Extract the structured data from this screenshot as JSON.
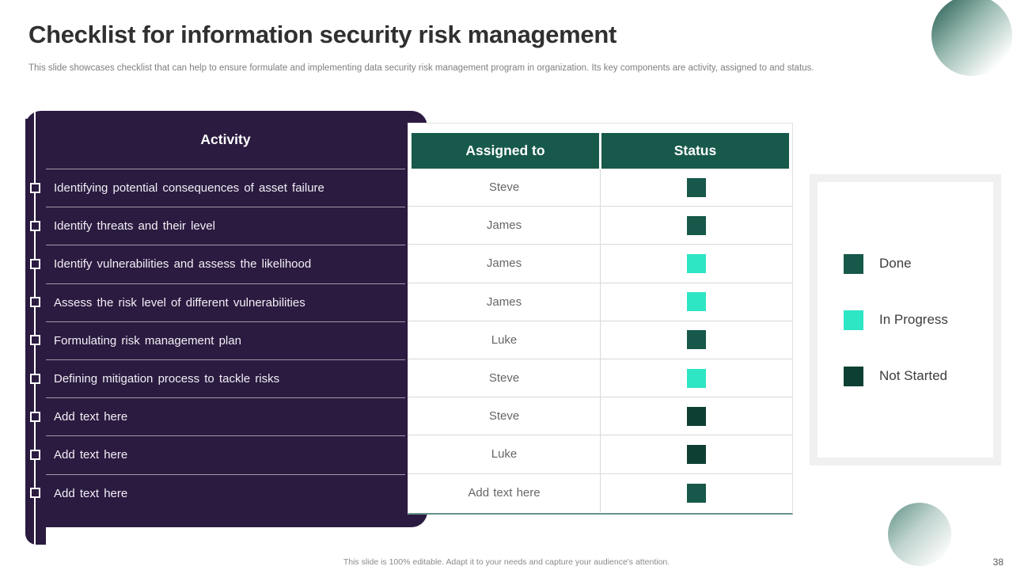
{
  "slide": {
    "title": "Checklist for information security risk management",
    "subtitle": "This slide showcases checklist that can help to ensure formulate and implementing data security risk management program in organization. Its key components are activity, assigned to and status.",
    "footer": "This slide is 100% editable. Adapt it to your needs and capture your audience's attention.",
    "page_number": "38"
  },
  "table": {
    "activity_header": "Activity",
    "assigned_header": "Assigned to",
    "status_header": "Status",
    "rows": [
      {
        "activity": "Identifying potential consequences of asset failure",
        "assigned": "Steve",
        "status": "done"
      },
      {
        "activity": "Identify threats and their level",
        "assigned": "James",
        "status": "done"
      },
      {
        "activity": "Identify vulnerabilities and assess the likelihood",
        "assigned": "James",
        "status": "in_progress"
      },
      {
        "activity": "Assess the risk level of different vulnerabilities",
        "assigned": "James",
        "status": "in_progress"
      },
      {
        "activity": "Formulating risk management plan",
        "assigned": "Luke",
        "status": "done"
      },
      {
        "activity": "Defining mitigation process to tackle risks",
        "assigned": "Steve",
        "status": "in_progress"
      },
      {
        "activity": "Add text here",
        "assigned": "Steve",
        "status": "not_started"
      },
      {
        "activity": "Add text here",
        "assigned": "Luke",
        "status": "not_started"
      },
      {
        "activity": "Add text here",
        "assigned": "Add text here",
        "status": "done"
      }
    ]
  },
  "legend": {
    "items": [
      {
        "label": "Done",
        "status": "done"
      },
      {
        "label": "In Progress",
        "status": "in_progress"
      },
      {
        "label": "Not Started",
        "status": "not_started"
      }
    ]
  },
  "colors": {
    "done": "#16594a",
    "in_progress": "#2ee5c4",
    "not_started": "#0d4033",
    "header_teal": "#17594b",
    "panel_purple": "#2b1b40"
  }
}
